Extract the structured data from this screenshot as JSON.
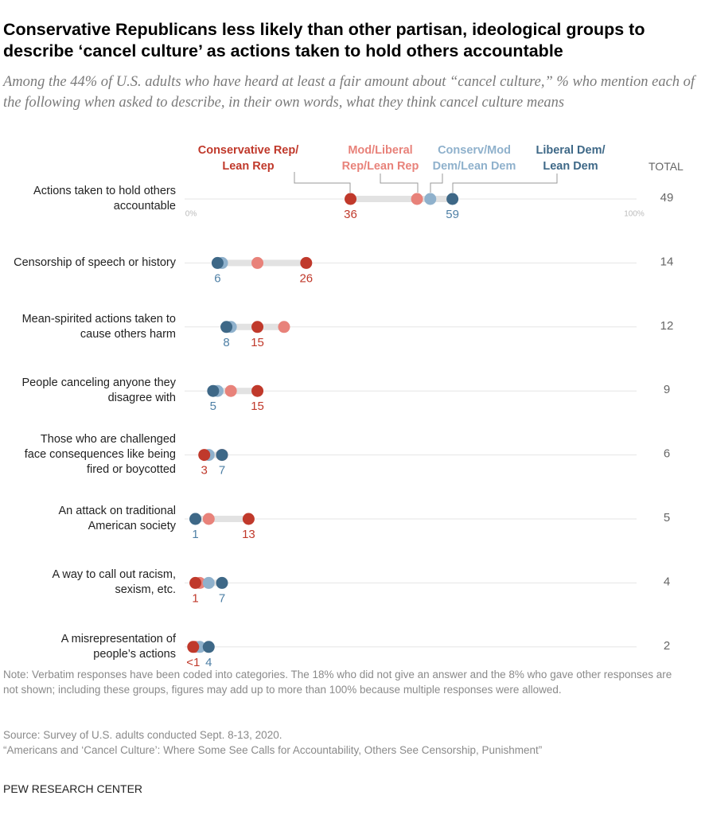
{
  "chart_data": {
    "type": "dot",
    "title": "Conservative Republicans less likely than other partisan, ideological groups to describe ‘cancel culture’ as actions taken to hold others accountable",
    "subtitle": "Among the 44% of U.S. adults who have heard at least a fair amount about “cancel culture,” % who mention each of the following when asked to describe, in their own words, what they think cancel culture means",
    "categories": [
      "Actions taken to hold others\naccountable",
      "Censorship of speech or history",
      "Mean-spirited actions taken to\ncause others harm",
      "People canceling anyone they\ndisagree with",
      "Those who are challenged\nface consequences like being\nfired or boycotted",
      "An attack on traditional\nAmerican society",
      "A way to call out racism,\nsexism, etc.",
      "A misrepresentation of\npeople’s actions"
    ],
    "series": [
      {
        "name": "Conservative Rep/\nLean Rep",
        "color": "#c0392b",
        "values": [
          36,
          26,
          15,
          15,
          3,
          13,
          1,
          0.5
        ],
        "value_labels": [
          "36",
          "26",
          "15",
          "15",
          "3",
          "13",
          "1",
          "<1"
        ]
      },
      {
        "name": "Mod/Liberal\nRep/Lean Rep",
        "color": "#e8827a",
        "values": [
          51,
          15,
          21,
          9,
          7,
          4,
          2,
          1
        ],
        "value_labels": [
          null,
          null,
          null,
          null,
          null,
          null,
          null,
          null
        ]
      },
      {
        "name": "Conserv/Mod\nDem/Lean Dem",
        "color": "#8fb1cc",
        "values": [
          54,
          7,
          9,
          6,
          4,
          1,
          4,
          2
        ],
        "value_labels": [
          null,
          null,
          null,
          null,
          null,
          null,
          null,
          null
        ]
      },
      {
        "name": "Liberal Dem/\nLean Dem",
        "color": "#3e6887",
        "values": [
          59,
          6,
          8,
          5,
          7,
          1,
          7,
          4
        ],
        "value_labels": [
          "59",
          "6",
          "8",
          "5",
          "7",
          "1",
          "7",
          "4"
        ]
      }
    ],
    "total_label": "TOTAL",
    "totals": [
      49,
      14,
      12,
      9,
      6,
      5,
      4,
      2
    ],
    "xlim": [
      0,
      100
    ],
    "xticks": [
      {
        "value": 0,
        "label": "0%"
      },
      {
        "value": 100,
        "label": "100%"
      }
    ],
    "note": "Note: Verbatim responses have been coded into categories. The 18% who did not give an answer and the 8% who gave other responses are not shown; including these groups, figures may add up to more than 100% because multiple responses were allowed.",
    "source": "Source: Survey of U.S. adults conducted Sept. 8-13, 2020.",
    "report": "“Americans and ‘Cancel Culture’: Where Some See Calls for Accountability, Others See Censorship, Punishment”",
    "credit": "PEW RESEARCH CENTER"
  }
}
